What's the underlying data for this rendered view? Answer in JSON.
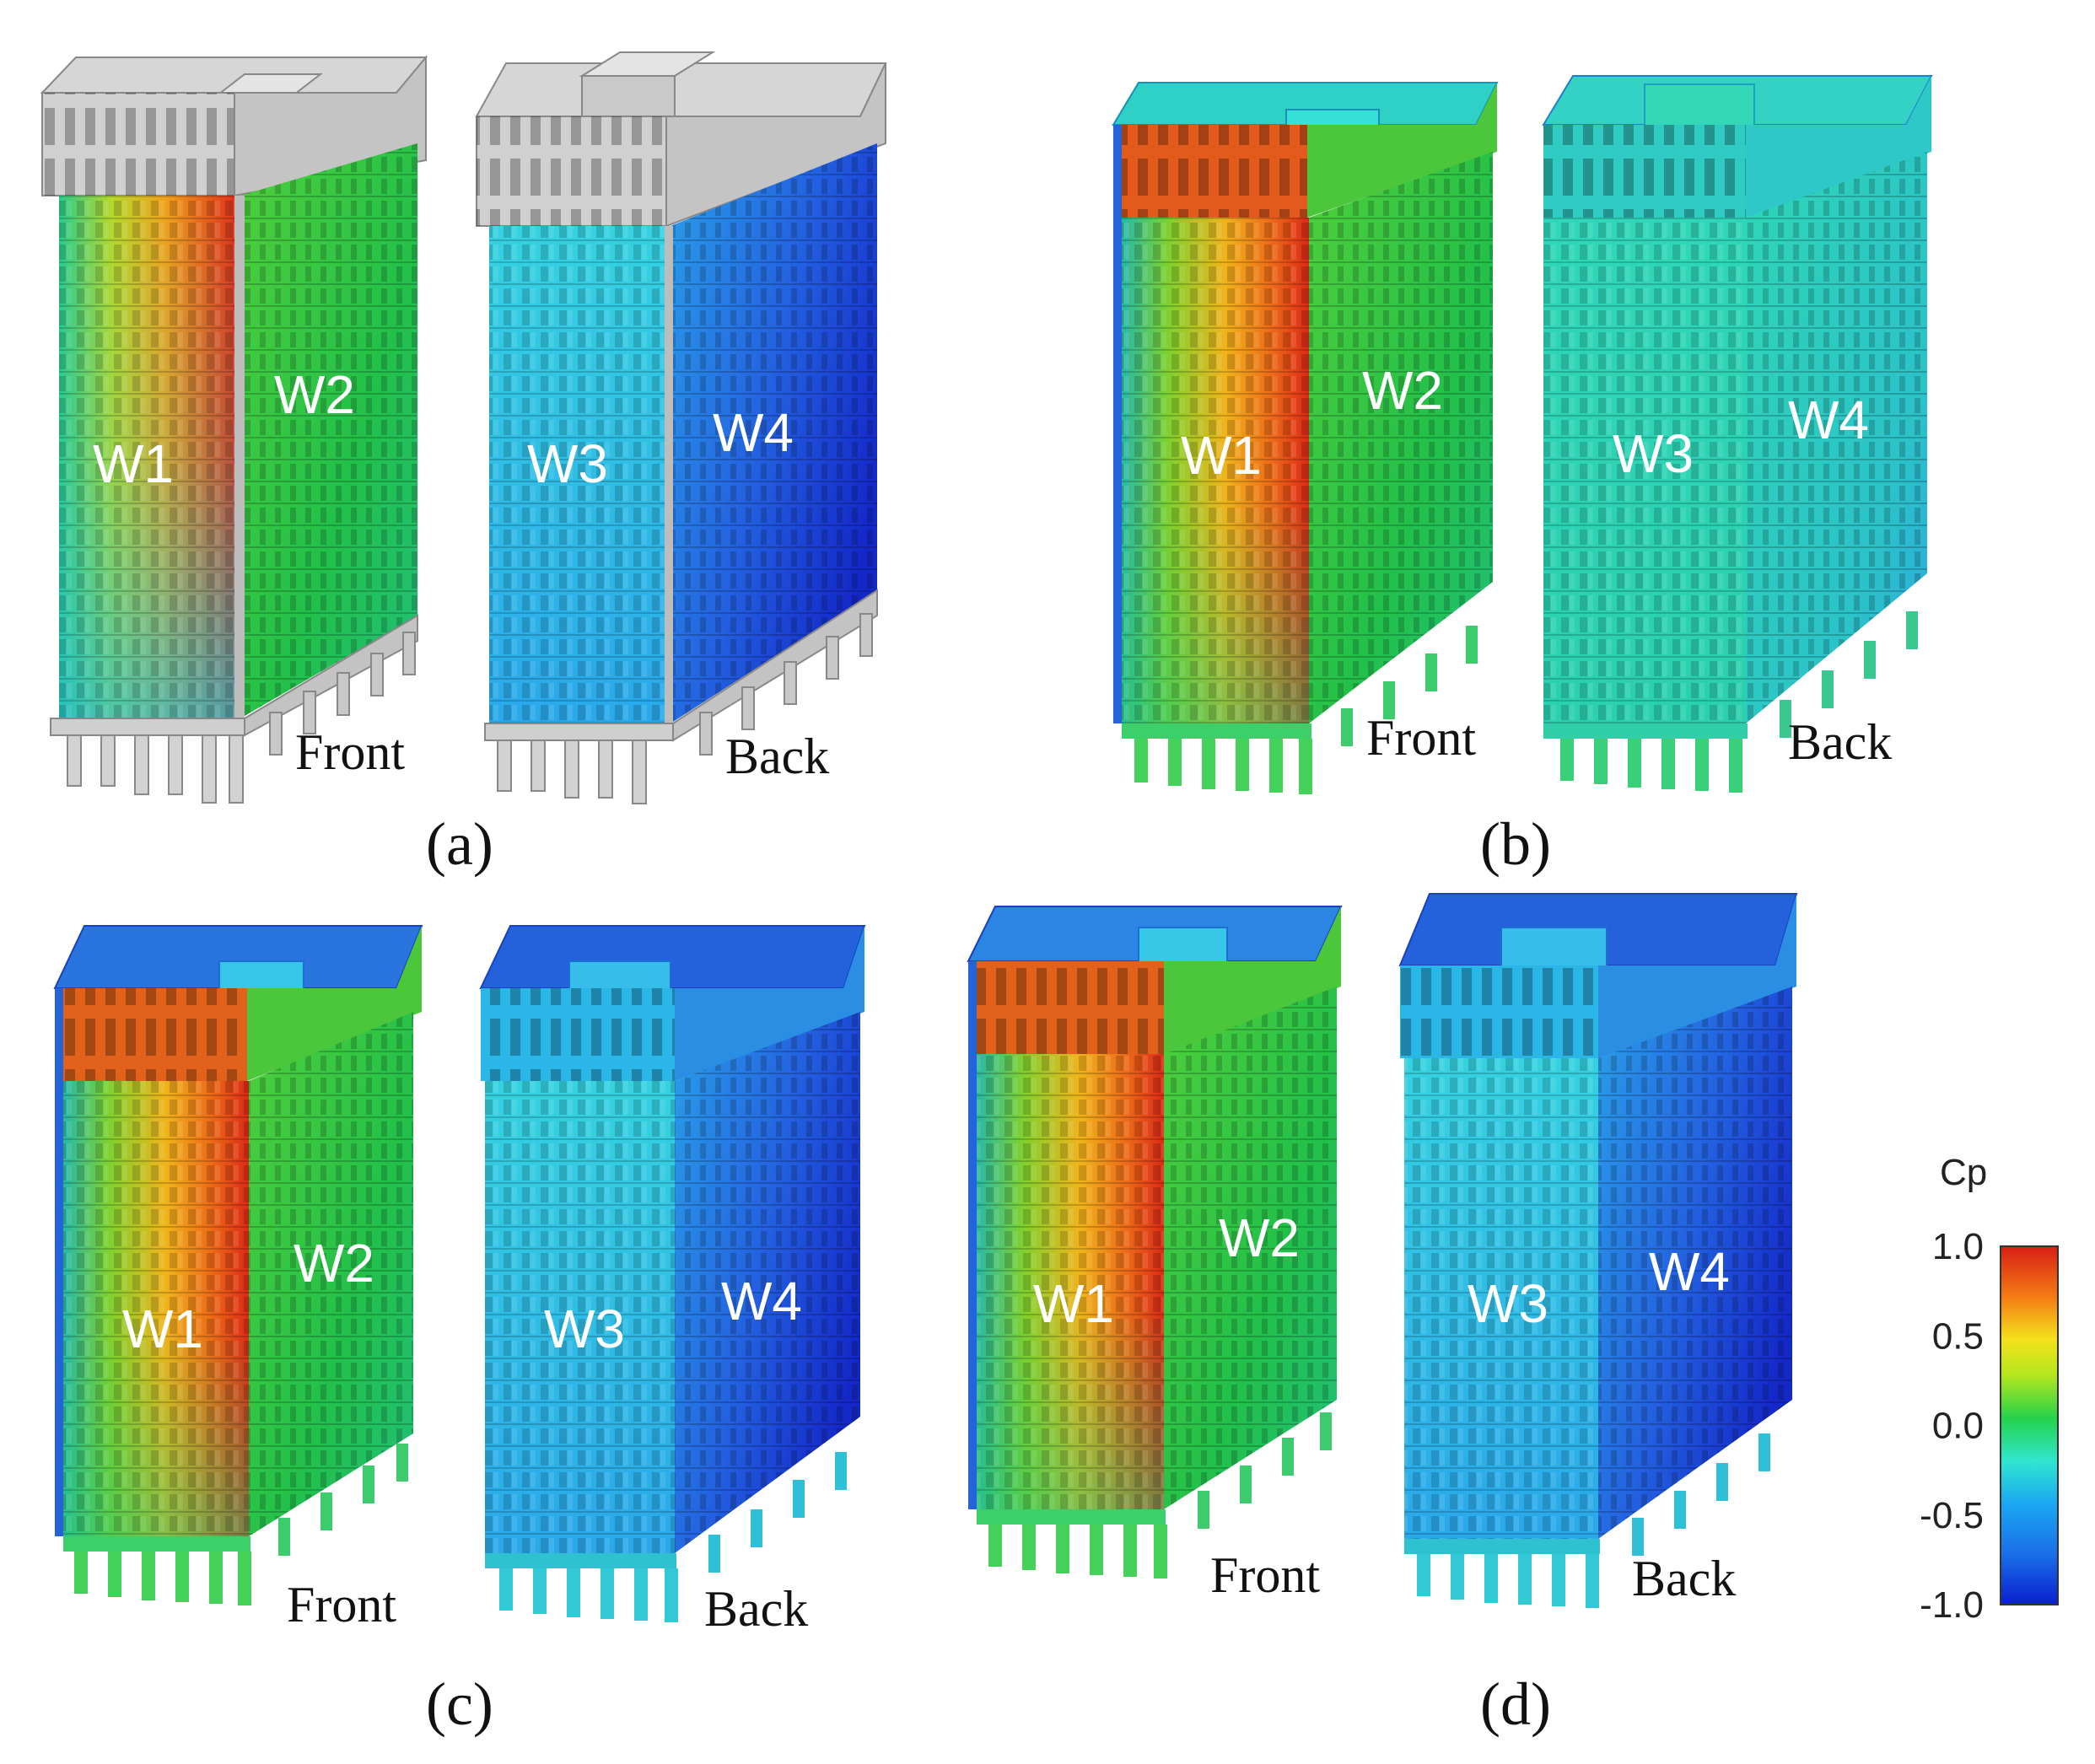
{
  "figure": {
    "panels": [
      {
        "label": "(a)",
        "letter": "a",
        "mode": "gray",
        "front": {
          "view": "Front",
          "faces": [
            "W1",
            "W2"
          ]
        },
        "back": {
          "view": "Back",
          "faces": [
            "W3",
            "W4"
          ]
        }
      },
      {
        "label": "(b)",
        "letter": "b",
        "mode": "full",
        "front": {
          "view": "Front",
          "faces": [
            "W1",
            "W2"
          ]
        },
        "back": {
          "view": "Back",
          "faces": [
            "W3",
            "W4"
          ]
        }
      },
      {
        "label": "(c)",
        "letter": "c",
        "mode": "full",
        "front": {
          "view": "Front",
          "faces": [
            "W1",
            "W2"
          ]
        },
        "back": {
          "view": "Back",
          "faces": [
            "W3",
            "W4"
          ]
        }
      },
      {
        "label": "(d)",
        "letter": "d",
        "mode": "full",
        "front": {
          "view": "Front",
          "faces": [
            "W1",
            "W2"
          ]
        },
        "back": {
          "view": "Back",
          "faces": [
            "W3",
            "W4"
          ]
        }
      }
    ],
    "colorbar": {
      "title": "Cp",
      "ticks": [
        "1.0",
        "0.5",
        "0.0",
        "-0.5",
        "-1.0"
      ],
      "range": [
        -1.0,
        1.0
      ],
      "colors": [
        "#0a1fcf",
        "#1aa7f2",
        "#2fe6d0",
        "#25d24a",
        "#b4e61e",
        "#f4e21a",
        "#f47a14",
        "#d81e14"
      ]
    },
    "palette": {
      "red": "#e23a1c",
      "orange": "#f08a1c",
      "yellow": "#e6d71e",
      "lime": "#8fd52a",
      "green": "#22c24a",
      "teal": "#2bd6b4",
      "cyan": "#27c6e8",
      "sky": "#2a9de8",
      "blue": "#1e42d8",
      "gray": "#c8c8c8"
    }
  }
}
